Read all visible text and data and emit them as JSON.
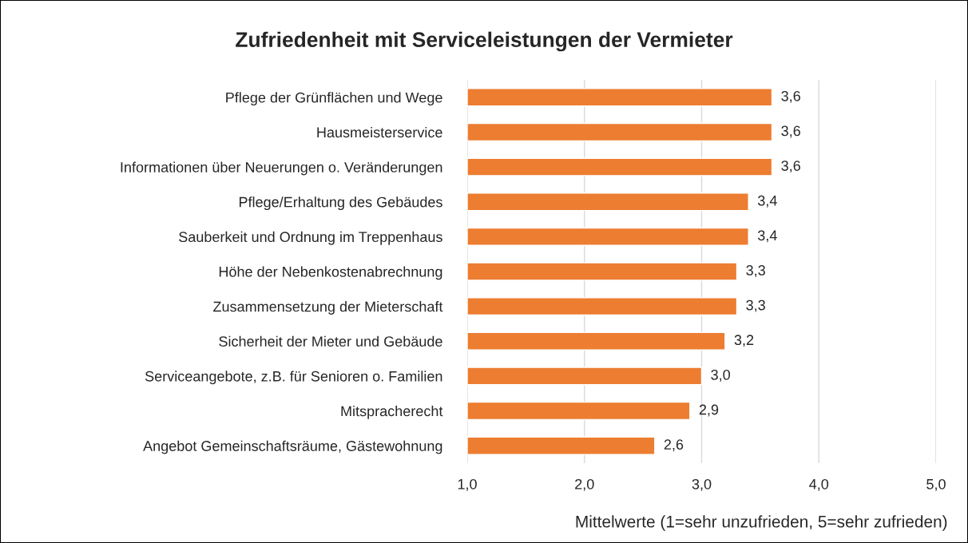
{
  "chart_data": {
    "type": "bar",
    "orientation": "horizontal",
    "title": "Zufriedenheit mit Serviceleistungen der Vermieter",
    "xlabel": "Mittelwerte (1=sehr unzufrieden, 5=sehr zufrieden)",
    "categories": [
      "Pflege der Grünflächen und Wege",
      "Hausmeisterservice",
      "Informationen über Neuerungen o. Veränderungen",
      "Pflege/Erhaltung des Gebäudes",
      "Sauberkeit und Ordnung im Treppenhaus",
      "Höhe der Nebenkostenabrechnung",
      "Zusammensetzung der Mieterschaft",
      "Sicherheit der Mieter und Gebäude",
      "Serviceangebote, z.B. für Senioren o. Familien",
      "Mitspracherecht",
      "Angebot Gemeinschaftsräume, Gästewohnung"
    ],
    "values": [
      3.6,
      3.6,
      3.6,
      3.4,
      3.4,
      3.3,
      3.3,
      3.2,
      3.0,
      2.9,
      2.6
    ],
    "value_labels": [
      "3,6",
      "3,6",
      "3,6",
      "3,4",
      "3,4",
      "3,3",
      "3,3",
      "3,2",
      "3,0",
      "2,9",
      "2,6"
    ],
    "color": "#ed7d31",
    "xlim": [
      1,
      5
    ],
    "xticks": [
      {
        "value": 1,
        "label": "1,0"
      },
      {
        "value": 2,
        "label": "2,0"
      },
      {
        "value": 3,
        "label": "3,0"
      },
      {
        "value": 4,
        "label": "4,0"
      },
      {
        "value": 5,
        "label": "5,0"
      }
    ],
    "grid": "x"
  }
}
